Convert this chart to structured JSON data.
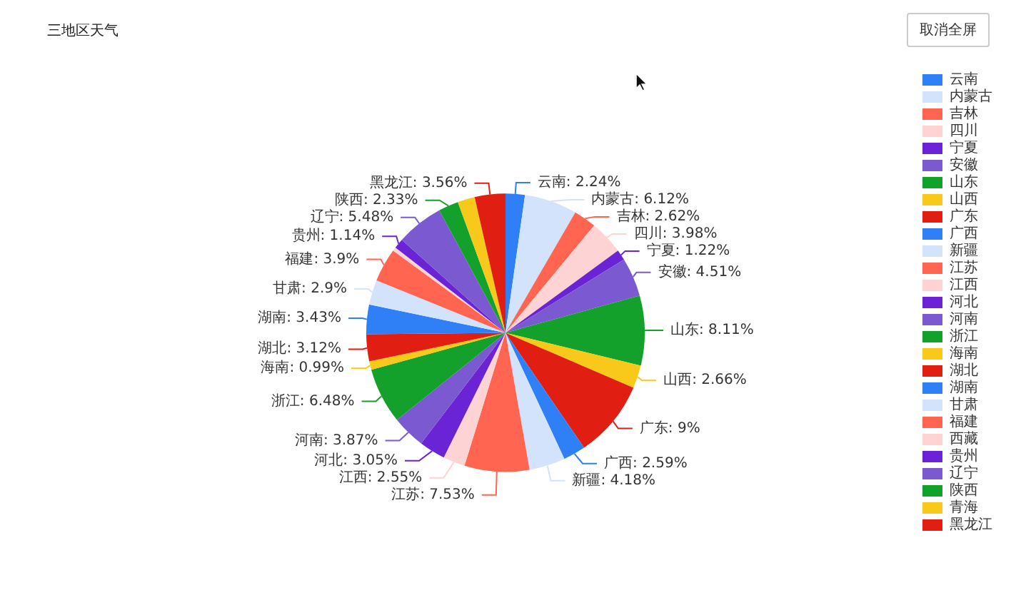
{
  "chart_data": {
    "type": "pie",
    "title": "三地区天气",
    "categories": [
      "云南",
      "内蒙古",
      "吉林",
      "四川",
      "宁夏",
      "安徽",
      "山东",
      "山西",
      "广东",
      "广西",
      "新疆",
      "江苏",
      "江西",
      "河北",
      "河南",
      "浙江",
      "海南",
      "湖北",
      "湖南",
      "甘肃",
      "福建",
      "西藏",
      "贵州",
      "辽宁",
      "陕西",
      "青海",
      "黑龙江"
    ],
    "values": [
      2.24,
      6.12,
      2.62,
      3.98,
      1.22,
      4.51,
      8.11,
      2.66,
      9,
      2.59,
      4.18,
      7.53,
      2.55,
      3.05,
      3.87,
      6.48,
      0.99,
      3.12,
      3.43,
      2.9,
      3.9,
      0.44,
      1.14,
      5.48,
      2.33,
      2.0,
      3.56
    ],
    "colors": [
      "#2f7ff6",
      "#d2e3fb",
      "#ff6550",
      "#fed3d3",
      "#6a24d6",
      "#7b59d0",
      "#13a02b",
      "#f8c81a",
      "#e01e12",
      "#2f7ff6",
      "#d2e3fb",
      "#ff6550",
      "#fed3d3",
      "#6a24d6",
      "#7b59d0",
      "#13a02b",
      "#f8c81a",
      "#e01e12",
      "#2f7ff6",
      "#d2e3fb",
      "#ff6550",
      "#fed3d3",
      "#6a24d6",
      "#7b59d0",
      "#13a02b",
      "#f8c81a",
      "#e01e12"
    ],
    "value_labels": [
      "云南: 2.24%",
      "内蒙古: 6.12%",
      "吉林: 2.62%",
      "四川: 3.98%",
      "宁夏: 1.22%",
      "安徽: 4.51%",
      "山东: 8.11%",
      "山西: 2.66%",
      "广东: 9%",
      "广西: 2.59%",
      "新疆: 4.18%",
      "江苏: 7.53%",
      "江西: 2.55%",
      "河北: 3.05%",
      "河南: 3.87%",
      "浙江: 6.48%",
      "海南: 0.99%",
      "湖北: 3.12%",
      "湖南: 3.43%",
      "甘肃: 2.9%",
      "福建: 3.9%",
      null,
      "贵州: 1.14%",
      "辽宁: 5.48%",
      "陕西: 2.33%",
      null,
      "黑龙江: 3.56%"
    ],
    "legend": "right",
    "annotations": [
      "取消全屏"
    ]
  }
}
